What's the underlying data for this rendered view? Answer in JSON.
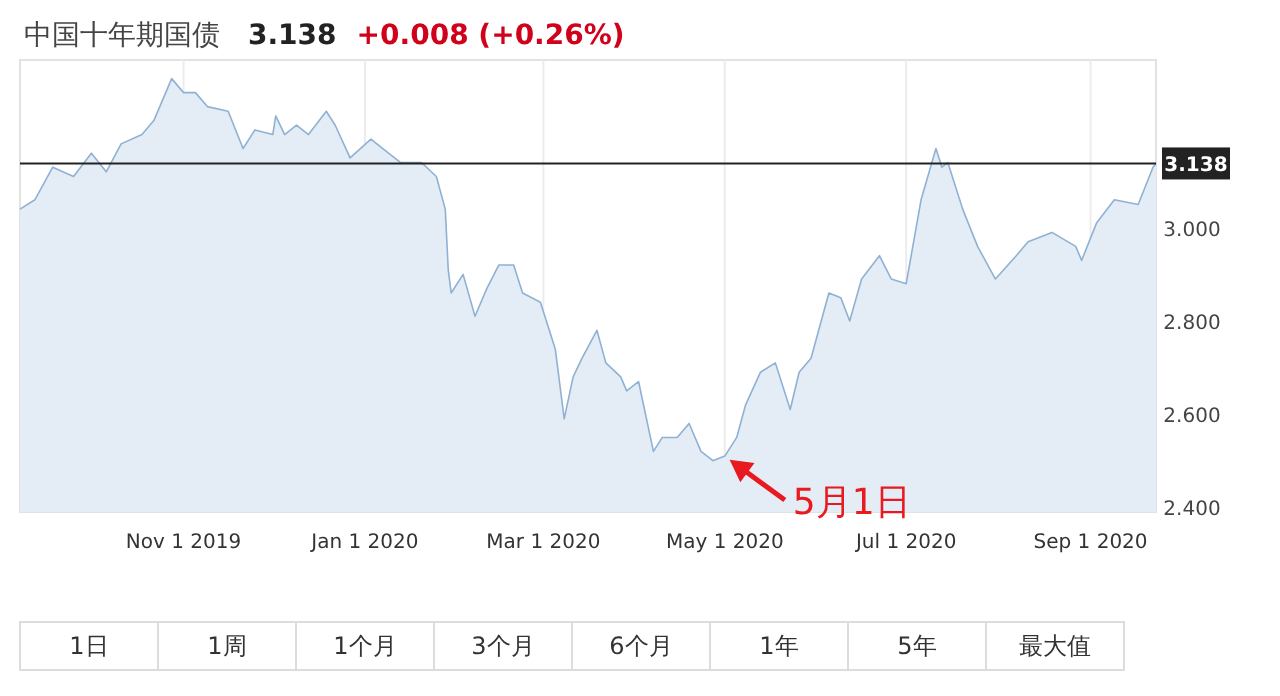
{
  "chart_data": {
    "type": "area",
    "title": "中国十年期国债",
    "subtitle": "3.138",
    "annotations": [
      "+0.008 (+0.26%)",
      {
        "text": "5月1日",
        "x": "2020-05-01",
        "y": 2.51
      },
      "1日",
      "1周",
      "1个月",
      "3个月",
      "6个月",
      "1年",
      "5年",
      "最大值"
    ],
    "x": [
      "2019-09-07",
      "2019-09-12",
      "2019-09-18",
      "2019-09-25",
      "2019-10-01",
      "2019-10-06",
      "2019-10-11",
      "2019-10-18",
      "2019-10-22",
      "2019-10-28",
      "2019-11-01",
      "2019-11-05",
      "2019-11-09",
      "2019-11-16",
      "2019-11-21",
      "2019-11-25",
      "2019-12-01",
      "2019-12-02",
      "2019-12-05",
      "2019-12-09",
      "2019-12-13",
      "2019-12-19",
      "2019-12-22",
      "2019-12-27",
      "2020-01-03",
      "2020-01-07",
      "2020-01-13",
      "2020-01-20",
      "2020-01-25",
      "2020-01-28",
      "2020-01-29",
      "2020-01-30",
      "2020-02-03",
      "2020-02-07",
      "2020-02-11",
      "2020-02-15",
      "2020-02-20",
      "2020-02-23",
      "2020-02-29",
      "2020-03-02",
      "2020-03-05",
      "2020-03-08",
      "2020-03-11",
      "2020-03-14",
      "2020-03-19",
      "2020-03-22",
      "2020-03-27",
      "2020-03-29",
      "2020-04-02",
      "2020-04-04",
      "2020-04-07",
      "2020-04-10",
      "2020-04-15",
      "2020-04-19",
      "2020-04-23",
      "2020-04-27",
      "2020-05-01",
      "2020-05-05",
      "2020-05-08",
      "2020-05-13",
      "2020-05-18",
      "2020-05-23",
      "2020-05-26",
      "2020-05-30",
      "2020-06-05",
      "2020-06-09",
      "2020-06-12",
      "2020-06-16",
      "2020-06-22",
      "2020-06-26",
      "2020-07-01",
      "2020-07-06",
      "2020-07-11",
      "2020-07-13",
      "2020-07-15",
      "2020-07-20",
      "2020-07-25",
      "2020-07-31",
      "2020-08-07",
      "2020-08-11",
      "2020-08-19",
      "2020-08-27",
      "2020-08-29",
      "2020-09-03",
      "2020-09-09",
      "2020-09-17",
      "2020-09-22",
      "2020-09-23"
    ],
    "series": [
      {
        "color": "#8fb1d3",
        "values": [
          3.04,
          3.06,
          3.13,
          3.11,
          3.16,
          3.12,
          3.18,
          3.2,
          3.23,
          3.32,
          3.29,
          3.29,
          3.26,
          3.25,
          3.17,
          3.21,
          3.2,
          3.24,
          3.2,
          3.22,
          3.2,
          3.25,
          3.22,
          3.15,
          3.19,
          3.17,
          3.14,
          3.14,
          3.11,
          3.04,
          2.91,
          2.86,
          2.9,
          2.81,
          2.87,
          2.92,
          2.92,
          2.86,
          2.84,
          2.8,
          2.74,
          2.59,
          2.68,
          2.72,
          2.78,
          2.71,
          2.68,
          2.65,
          2.67,
          2.61,
          2.52,
          2.55,
          2.55,
          2.58,
          2.52,
          2.5,
          2.51,
          2.55,
          2.62,
          2.69,
          2.71,
          2.61,
          2.69,
          2.72,
          2.86,
          2.85,
          2.8,
          2.89,
          2.94,
          2.89,
          2.88,
          3.06,
          3.17,
          3.13,
          3.14,
          3.04,
          2.96,
          2.89,
          2.94,
          2.97,
          2.99,
          2.96,
          2.93,
          3.01,
          3.06,
          3.05,
          3.13,
          3.138
        ]
      }
    ],
    "xlim": [
      "2019-09-07",
      "2020-09-23"
    ],
    "xticks": [
      {
        "value": "2019-11-01",
        "label": "Nov 1 2019"
      },
      {
        "value": "2020-01-01",
        "label": "Jan 1 2020"
      },
      {
        "value": "2020-03-01",
        "label": "Mar 1 2020"
      },
      {
        "value": "2020-05-01",
        "label": "May 1 2020"
      },
      {
        "value": "2020-07-01",
        "label": "Jul 1 2020"
      },
      {
        "value": "2020-09-01",
        "label": "Sep 1 2020"
      }
    ],
    "ylim": [
      2.39,
      3.36
    ],
    "yticks": [
      {
        "value": 2.4,
        "label": "2.400"
      },
      {
        "value": 2.6,
        "label": "2.600"
      },
      {
        "value": 2.8,
        "label": "2.800"
      },
      {
        "value": 3.0,
        "label": "3.000"
      }
    ],
    "ref_lines": [
      {
        "axis": "y",
        "value": 3.138,
        "label": "3.138",
        "color": "#222222"
      }
    ],
    "grid": "x"
  }
}
